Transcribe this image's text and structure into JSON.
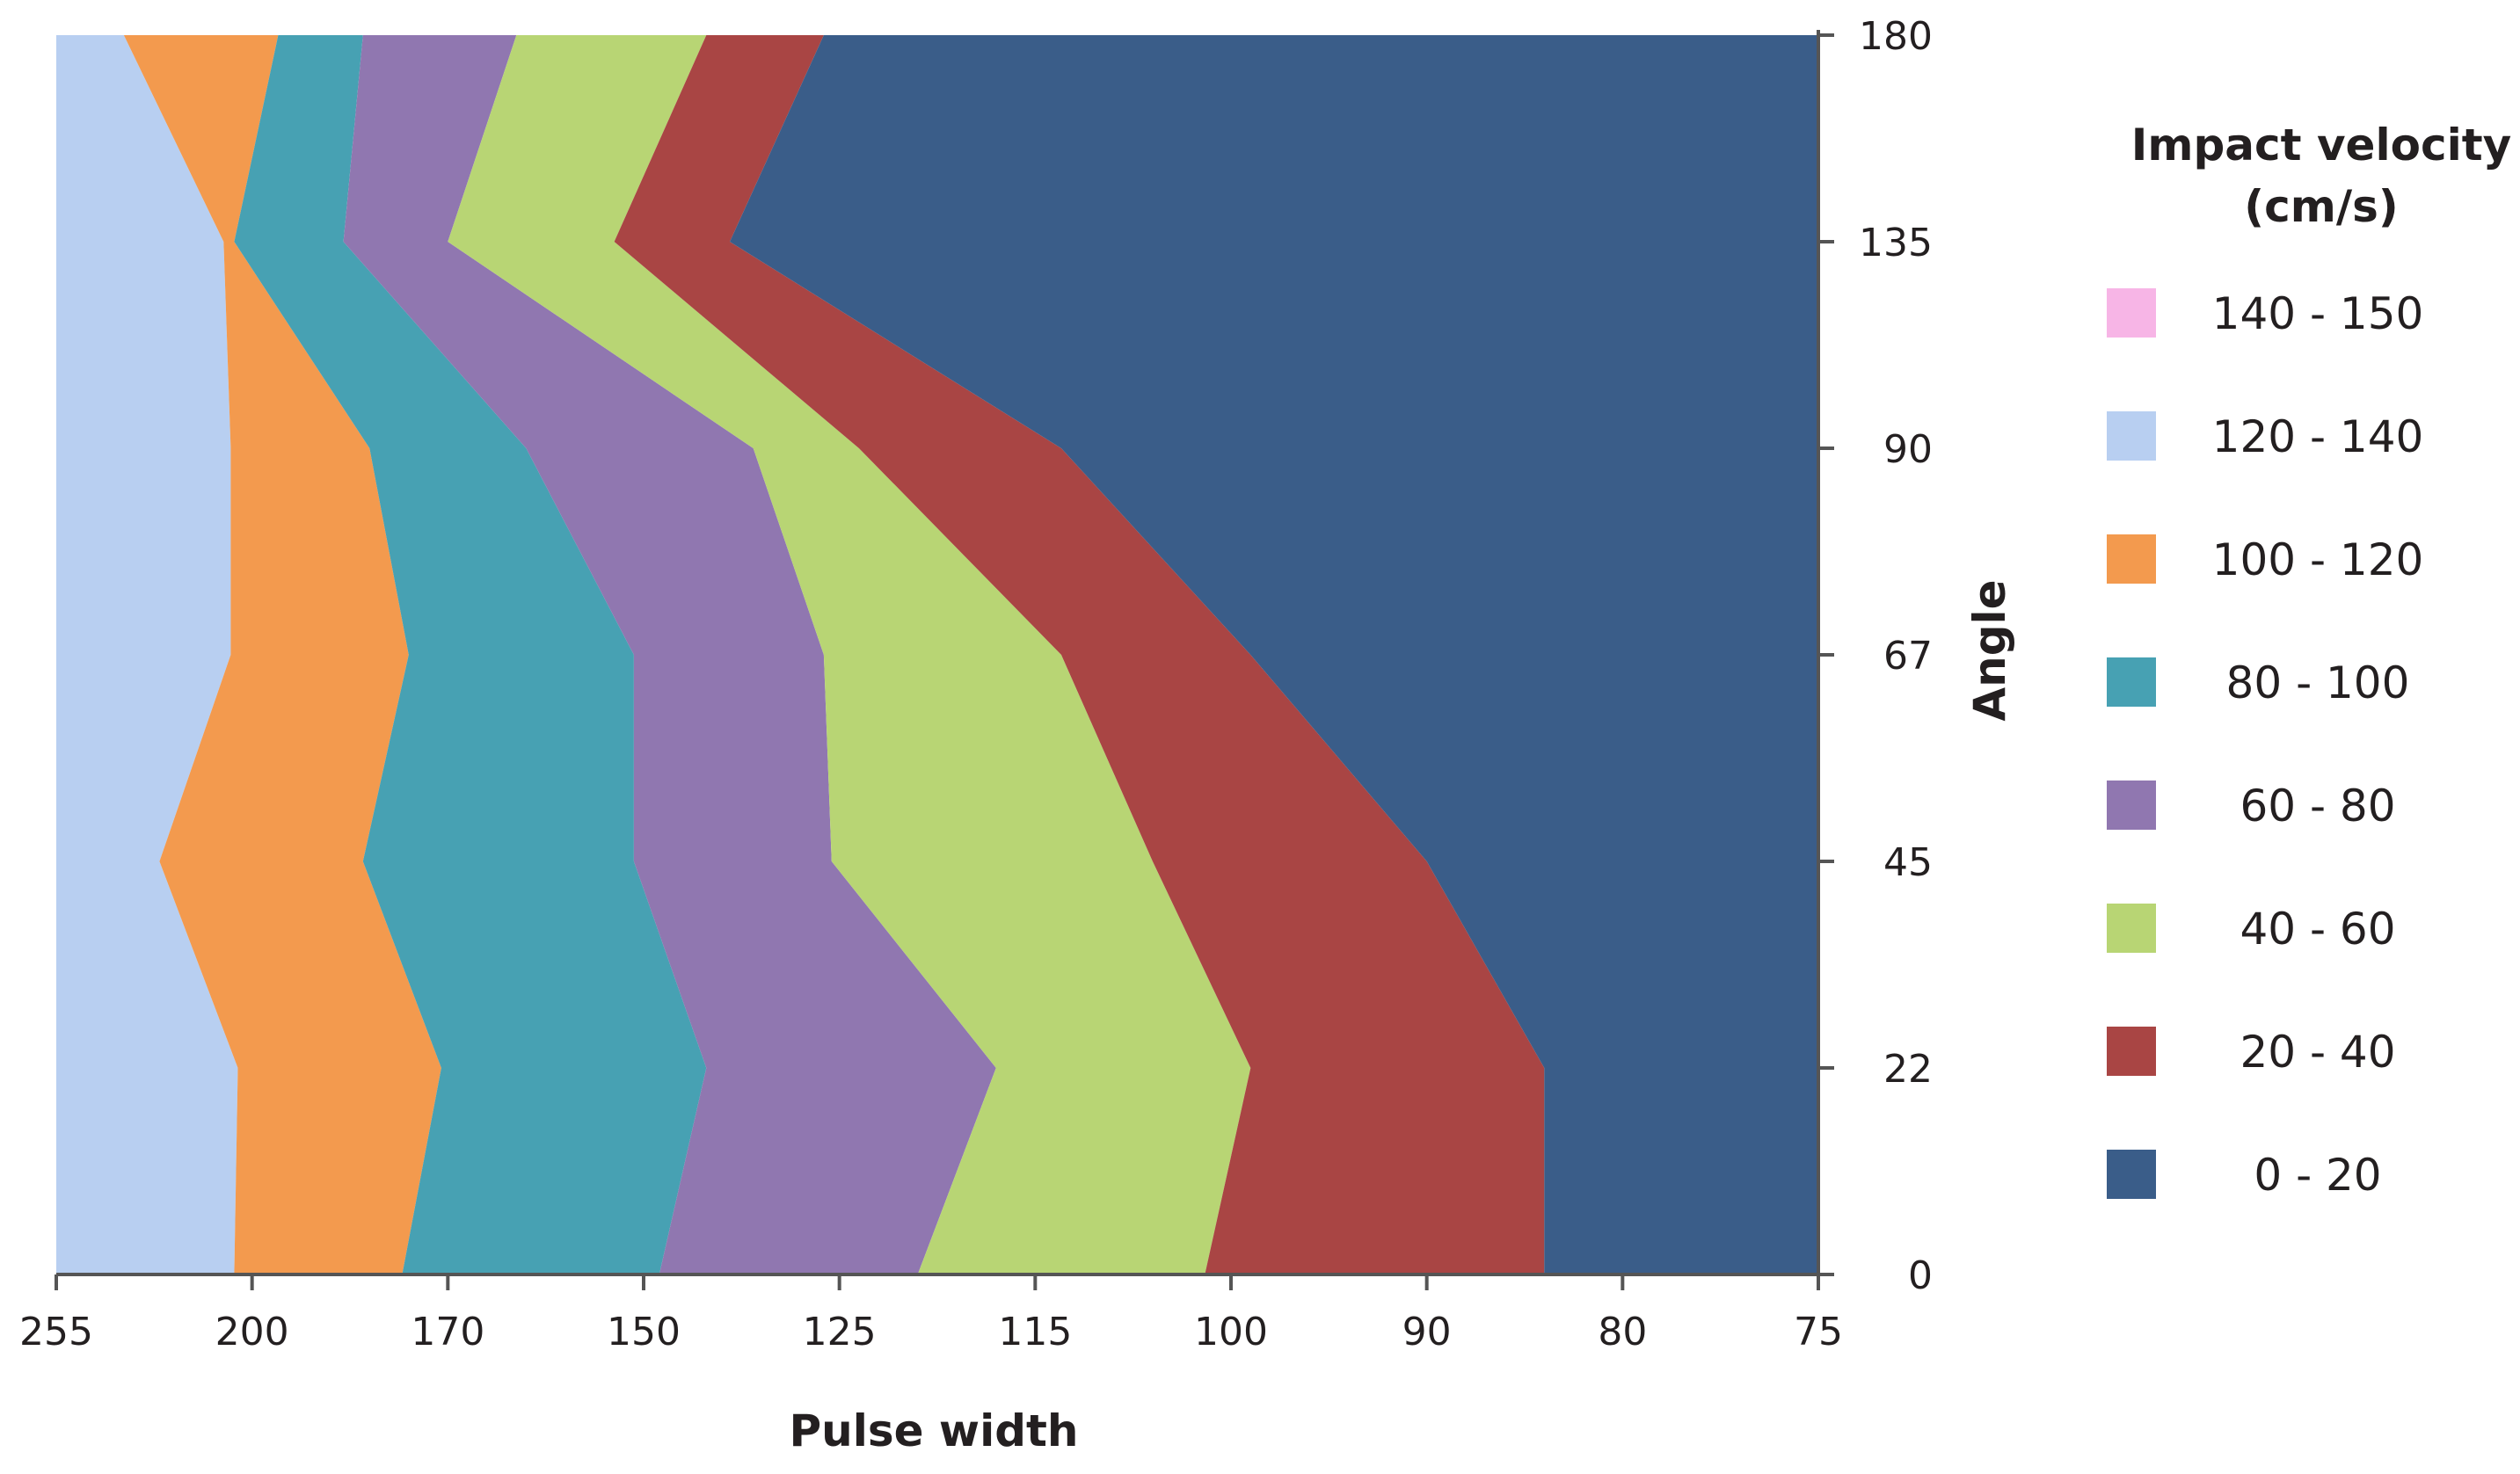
{
  "chart_data": {
    "type": "area",
    "xlabel": "Pulse width",
    "ylabel": "Angle",
    "x_ticks": [
      "255",
      "200",
      "170",
      "150",
      "125",
      "115",
      "100",
      "90",
      "80",
      "75"
    ],
    "y_ticks": [
      "0",
      "22",
      "45",
      "67",
      "90",
      "135",
      "180"
    ],
    "y_axis_position": "right",
    "legend": {
      "title_line1": "Impact velocity",
      "title_line2": "(cm/s)",
      "placement": "right",
      "entries": [
        {
          "label": "140 - 150",
          "color": "#f7b5e6"
        },
        {
          "label": "120 - 140",
          "color": "#b8cff1"
        },
        {
          "label": "100 - 120",
          "color": "#f39a4e"
        },
        {
          "label": "80 - 100",
          "color": "#47a1b3"
        },
        {
          "label": "60 - 80",
          "color": "#9077b0"
        },
        {
          "label": "40 - 60",
          "color": "#b8d574"
        },
        {
          "label": "20 - 40",
          "color": "#a94544"
        },
        {
          "label": "0 - 20",
          "color": "#3a5d89"
        }
      ]
    },
    "boundary_angles": [
      "0",
      "22",
      "45",
      "67",
      "90",
      "135",
      "180"
    ],
    "boundaries": [
      {
        "between": "120-140 | 100-120",
        "pulse_width": [
          "205",
          "204",
          "226",
          "206",
          "206",
          "208",
          "236"
        ]
      },
      {
        "between": "100-120 | 80-100",
        "pulse_width": [
          "177",
          "171",
          "183",
          "176",
          "182",
          "205",
          "196"
        ]
      },
      {
        "between": "80-100 | 60-80",
        "pulse_width": [
          "148",
          "142",
          "151",
          "151",
          "162",
          "186",
          "183"
        ]
      },
      {
        "between": "60-80 | 40-60",
        "pulse_width": [
          "121",
          "117",
          "126",
          "127",
          "136",
          "170",
          "163"
        ]
      },
      {
        "between": "40-60 | 20-40",
        "pulse_width": [
          "102",
          "99",
          "106",
          "113",
          "124",
          "153",
          "142"
        ]
      },
      {
        "between": "20-40 | 0-20",
        "pulse_width": [
          "84",
          "84",
          "90",
          "99",
          "113",
          "139",
          "127"
        ]
      }
    ]
  }
}
